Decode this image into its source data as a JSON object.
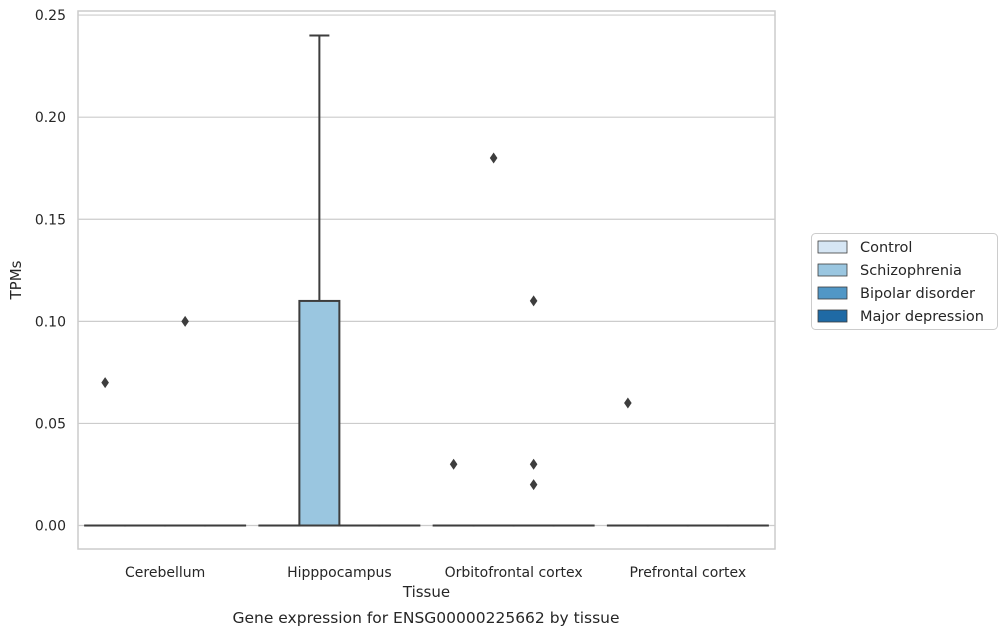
{
  "chart_data": {
    "type": "box",
    "caption": "Gene expression for ENSG00000225662 by tissue",
    "xlabel": "Tissue",
    "ylabel": "TPMs",
    "ylim": [
      -0.0115,
      0.252
    ],
    "yticks": [
      0.0,
      0.05,
      0.1,
      0.15,
      0.2,
      0.25
    ],
    "ytick_labels": [
      "0.00",
      "0.05",
      "0.10",
      "0.15",
      "0.20",
      "0.25"
    ],
    "grid": "horizontal",
    "legend_position": "right",
    "categories": [
      "Cerebellum",
      "Hipppocampus",
      "Orbitofrontal cortex",
      "Prefrontal cortex"
    ],
    "series": [
      {
        "name": "Control",
        "color": "#d6e6f4",
        "boxes": [
          {
            "q1": 0,
            "median": 0,
            "q3": 0,
            "whisker_low": 0,
            "whisker_high": 0,
            "outliers": [
              0.07
            ]
          },
          {
            "q1": 0,
            "median": 0,
            "q3": 0,
            "whisker_low": 0,
            "whisker_high": 0,
            "outliers": []
          },
          {
            "q1": 0,
            "median": 0,
            "q3": 0,
            "whisker_low": 0,
            "whisker_high": 0,
            "outliers": [
              0.03
            ]
          },
          {
            "q1": 0,
            "median": 0,
            "q3": 0,
            "whisker_low": 0,
            "whisker_high": 0,
            "outliers": [
              0.06
            ]
          }
        ]
      },
      {
        "name": "Schizophrenia",
        "color": "#9ac6e0",
        "boxes": [
          {
            "q1": 0,
            "median": 0,
            "q3": 0,
            "whisker_low": 0,
            "whisker_high": 0,
            "outliers": []
          },
          {
            "q1": 0,
            "median": 0,
            "q3": 0.11,
            "whisker_low": 0,
            "whisker_high": 0.24,
            "outliers": []
          },
          {
            "q1": 0,
            "median": 0,
            "q3": 0,
            "whisker_low": 0,
            "whisker_high": 0,
            "outliers": [
              0.18
            ]
          },
          {
            "q1": 0,
            "median": 0,
            "q3": 0,
            "whisker_low": 0,
            "whisker_high": 0,
            "outliers": []
          }
        ]
      },
      {
        "name": "Bipolar disorder",
        "color": "#5197c6",
        "boxes": [
          {
            "q1": 0,
            "median": 0,
            "q3": 0,
            "whisker_low": 0,
            "whisker_high": 0,
            "outliers": [
              0.1
            ]
          },
          {
            "q1": 0,
            "median": 0,
            "q3": 0,
            "whisker_low": 0,
            "whisker_high": 0,
            "outliers": []
          },
          {
            "q1": 0,
            "median": 0,
            "q3": 0,
            "whisker_low": 0,
            "whisker_high": 0,
            "outliers": [
              0.11,
              0.03,
              0.02
            ]
          },
          {
            "q1": 0,
            "median": 0,
            "q3": 0,
            "whisker_low": 0,
            "whisker_high": 0,
            "outliers": []
          }
        ]
      },
      {
        "name": "Major depression",
        "color": "#1f6aa5",
        "boxes": [
          {
            "q1": 0,
            "median": 0,
            "q3": 0,
            "whisker_low": 0,
            "whisker_high": 0,
            "outliers": []
          },
          {
            "q1": 0,
            "median": 0,
            "q3": 0,
            "whisker_low": 0,
            "whisker_high": 0,
            "outliers": []
          },
          {
            "q1": 0,
            "median": 0,
            "q3": 0,
            "whisker_low": 0,
            "whisker_high": 0,
            "outliers": []
          },
          {
            "q1": 0,
            "median": 0,
            "q3": 0,
            "whisker_low": 0,
            "whisker_high": 0,
            "outliers": []
          }
        ]
      }
    ]
  }
}
